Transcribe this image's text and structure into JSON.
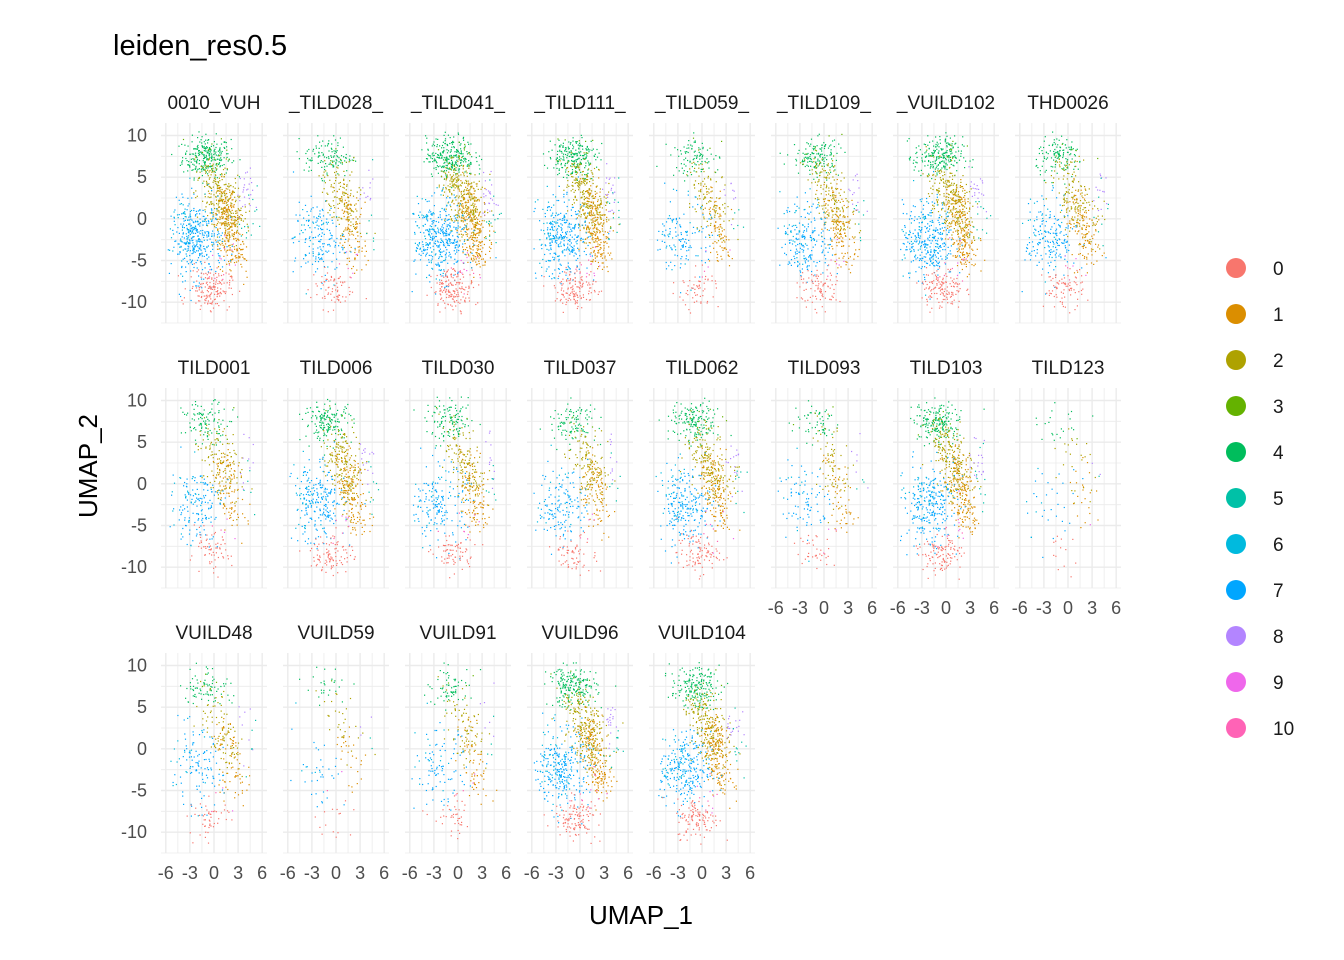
{
  "chart_data": {
    "type": "scatter",
    "title": "leiden_res0.5",
    "xlabel": "UMAP_1",
    "ylabel": "UMAP_2",
    "xlim": [
      -6.6,
      6.6
    ],
    "ylim": [
      -12.5,
      11.5
    ],
    "x_ticks": [
      "-6",
      "-3",
      "0",
      "3",
      "6"
    ],
    "x_tick_values": [
      -6,
      -3,
      0,
      3,
      6
    ],
    "y_ticks": [
      "10",
      "5",
      "0",
      "-5",
      "-10"
    ],
    "y_tick_values": [
      10,
      5,
      0,
      -5,
      -10
    ],
    "grid": true,
    "legend_position": "right",
    "legend": [
      {
        "label": "0",
        "color": "#F8766D"
      },
      {
        "label": "1",
        "color": "#DB8E00"
      },
      {
        "label": "2",
        "color": "#AEA200"
      },
      {
        "label": "3",
        "color": "#64B200"
      },
      {
        "label": "4",
        "color": "#00BD5C"
      },
      {
        "label": "5",
        "color": "#00C1A7"
      },
      {
        "label": "6",
        "color": "#00BADE"
      },
      {
        "label": "7",
        "color": "#00A6FF"
      },
      {
        "label": "8",
        "color": "#B385FF"
      },
      {
        "label": "9",
        "color": "#EF67EB"
      },
      {
        "label": "10",
        "color": "#FF63B6"
      }
    ],
    "panels": [
      {
        "label": "0010_VUH",
        "density": 1.0
      },
      {
        "label": "_TILD028_",
        "density": 0.45
      },
      {
        "label": "_TILD041_",
        "density": 1.0
      },
      {
        "label": "_TILD111_",
        "density": 0.85
      },
      {
        "label": "_TILD059_",
        "density": 0.35
      },
      {
        "label": "_TILD109_",
        "density": 0.55
      },
      {
        "label": "_VUILD102",
        "density": 0.85
      },
      {
        "label": "THD0026",
        "density": 0.5
      },
      {
        "label": "TILD001",
        "density": 0.4
      },
      {
        "label": "TILD006",
        "density": 0.6
      },
      {
        "label": "TILD030",
        "density": 0.45
      },
      {
        "label": "TILD037",
        "density": 0.4
      },
      {
        "label": "TILD062",
        "density": 0.6
      },
      {
        "label": "TILD093",
        "density": 0.22
      },
      {
        "label": "TILD103",
        "density": 0.7
      },
      {
        "label": "TILD123",
        "density": 0.08
      },
      {
        "label": "VUILD48",
        "density": 0.3
      },
      {
        "label": "VUILD59",
        "density": 0.1
      },
      {
        "label": "VUILD91",
        "density": 0.25
      },
      {
        "label": "VUILD96",
        "density": 0.75
      },
      {
        "label": "VUILD104",
        "density": 0.7
      }
    ]
  }
}
